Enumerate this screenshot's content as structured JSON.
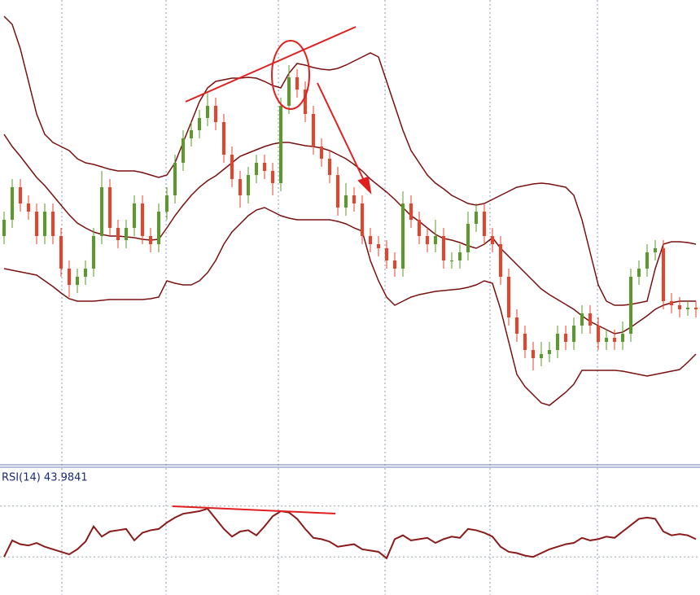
{
  "chart_data": {
    "type": "candlestick",
    "ylim": [
      0,
      570
    ],
    "up_color": "#5a9a2a",
    "down_color": "#e8422a",
    "band_color": "#7a1010",
    "open": [
      280,
      300,
      340,
      320,
      310,
      280,
      310,
      280,
      240,
      220,
      230,
      240,
      280,
      340,
      290,
      275,
      290,
      320,
      280,
      270,
      310,
      330,
      370,
      400,
      410,
      425,
      440,
      420,
      380,
      350,
      330,
      355,
      370,
      360,
      345,
      440,
      475,
      460,
      430,
      390,
      375,
      355,
      315,
      330,
      320,
      280,
      270,
      265,
      250,
      240,
      320,
      300,
      280,
      270,
      280,
      250,
      250,
      260,
      295,
      310,
      280,
      270,
      230,
      180,
      160,
      140,
      130,
      135,
      140,
      160,
      150,
      170,
      185,
      170,
      150,
      155,
      150,
      160,
      230,
      240,
      260,
      265,
      200,
      195,
      190,
      192
    ],
    "close": [
      300,
      340,
      320,
      310,
      280,
      310,
      280,
      240,
      220,
      230,
      240,
      280,
      340,
      290,
      275,
      290,
      320,
      280,
      270,
      310,
      330,
      370,
      400,
      410,
      425,
      440,
      420,
      380,
      350,
      330,
      355,
      370,
      360,
      345,
      440,
      475,
      460,
      430,
      390,
      375,
      355,
      315,
      330,
      320,
      280,
      270,
      265,
      250,
      240,
      320,
      300,
      280,
      270,
      280,
      250,
      250,
      260,
      295,
      310,
      280,
      270,
      230,
      180,
      160,
      140,
      130,
      135,
      140,
      160,
      150,
      170,
      185,
      170,
      150,
      155,
      150,
      160,
      230,
      240,
      260,
      265,
      200,
      195,
      190,
      192,
      190
    ],
    "high": [
      310,
      350,
      350,
      330,
      320,
      320,
      320,
      290,
      250,
      240,
      250,
      290,
      360,
      350,
      300,
      300,
      330,
      330,
      290,
      320,
      340,
      380,
      410,
      420,
      435,
      455,
      450,
      430,
      390,
      360,
      365,
      380,
      380,
      370,
      450,
      490,
      485,
      470,
      440,
      400,
      385,
      365,
      345,
      340,
      330,
      290,
      280,
      275,
      260,
      335,
      330,
      310,
      290,
      300,
      290,
      260,
      270,
      310,
      320,
      320,
      290,
      280,
      240,
      190,
      170,
      150,
      150,
      150,
      170,
      170,
      180,
      195,
      195,
      180,
      165,
      165,
      175,
      240,
      250,
      270,
      275,
      275,
      210,
      205,
      200,
      200
    ],
    "low": [
      270,
      290,
      310,
      300,
      270,
      270,
      270,
      230,
      205,
      210,
      220,
      230,
      270,
      280,
      265,
      265,
      280,
      270,
      260,
      260,
      300,
      320,
      360,
      390,
      400,
      415,
      410,
      370,
      340,
      315,
      320,
      345,
      350,
      330,
      335,
      430,
      450,
      420,
      380,
      365,
      345,
      305,
      305,
      310,
      270,
      260,
      255,
      240,
      230,
      230,
      290,
      270,
      260,
      260,
      240,
      240,
      240,
      250,
      285,
      270,
      260,
      220,
      170,
      150,
      130,
      115,
      120,
      125,
      130,
      140,
      140,
      160,
      160,
      140,
      140,
      140,
      140,
      150,
      220,
      230,
      250,
      190,
      185,
      180,
      182,
      180
    ],
    "bands": [
      {
        "name": "upper",
        "values": [
          550,
          540,
          510,
          470,
          430,
          405,
          395,
          390,
          385,
          375,
          370,
          368,
          365,
          362,
          360,
          360,
          360,
          358,
          355,
          352,
          355,
          370,
          395,
          420,
          445,
          462,
          470,
          472,
          474,
          474,
          475,
          474,
          470,
          465,
          462,
          480,
          492,
          490,
          487,
          485,
          484,
          486,
          490,
          495,
          500,
          505,
          500,
          470,
          440,
          410,
          385,
          370,
          355,
          345,
          338,
          330,
          325,
          320,
          318,
          320,
          325,
          330,
          335,
          340,
          342,
          344,
          345,
          344,
          342,
          340,
          330,
          300,
          260,
          220,
          200,
          195,
          195,
          196,
          198,
          200,
          240,
          270,
          273,
          273,
          272,
          270
        ]
      },
      {
        "name": "middle",
        "values": [
          405,
          390,
          378,
          365,
          352,
          342,
          330,
          318,
          306,
          296,
          290,
          285,
          282,
          280,
          280,
          279,
          278,
          276,
          275,
          276,
          290,
          305,
          318,
          330,
          340,
          348,
          354,
          362,
          370,
          378,
          382,
          386,
          390,
          393,
          395,
          395,
          393,
          391,
          390,
          388,
          385,
          380,
          375,
          368,
          360,
          350,
          342,
          334,
          325,
          315,
          305,
          298,
          290,
          282,
          277,
          275,
          272,
          268,
          265,
          270,
          278,
          265,
          255,
          245,
          235,
          225,
          215,
          208,
          202,
          196,
          190,
          182,
          175,
          170,
          165,
          160,
          162,
          168,
          175,
          182,
          190,
          195,
          198,
          200,
          200,
          200
        ]
      },
      {
        "name": "lower",
        "values": [
          240,
          238,
          236,
          234,
          232,
          225,
          218,
          210,
          203,
          200,
          200,
          200,
          201,
          202,
          202,
          202,
          202,
          202,
          203,
          205,
          225,
          222,
          220,
          220,
          225,
          235,
          250,
          270,
          285,
          295,
          305,
          312,
          315,
          310,
          305,
          302,
          300,
          300,
          300,
          300,
          300,
          298,
          295,
          290,
          286,
          250,
          225,
          205,
          195,
          200,
          205,
          208,
          210,
          212,
          213,
          214,
          215,
          217,
          220,
          225,
          222,
          190,
          150,
          110,
          95,
          85,
          75,
          72,
          80,
          88,
          98,
          115,
          115,
          115,
          115,
          115,
          114,
          112,
          110,
          108,
          110,
          112,
          114,
          116,
          125,
          135
        ]
      }
    ],
    "rsi": {
      "label": "RSI(14) 43.9841",
      "color": "#8b1a1a",
      "ylim": [
        0,
        100
      ],
      "levels": [
        70,
        30
      ],
      "values": [
        30,
        43,
        40,
        39,
        41,
        38,
        36,
        34,
        32,
        36,
        42,
        54,
        46,
        50,
        51,
        52,
        43,
        49,
        51,
        52,
        57,
        61,
        64,
        65,
        66,
        68,
        60,
        52,
        46,
        50,
        51,
        47,
        54,
        62,
        66,
        65,
        60,
        52,
        45,
        44,
        42,
        38,
        39,
        40,
        36,
        35,
        34,
        29,
        44,
        47,
        43,
        44,
        45,
        41,
        44,
        46,
        45,
        52,
        51,
        49,
        46,
        38,
        34,
        33,
        31,
        30,
        33,
        36,
        38,
        40,
        41,
        45,
        43,
        44,
        46,
        45,
        50,
        55,
        60,
        61,
        60,
        50,
        47,
        48,
        47,
        43.9841
      ]
    }
  }
}
